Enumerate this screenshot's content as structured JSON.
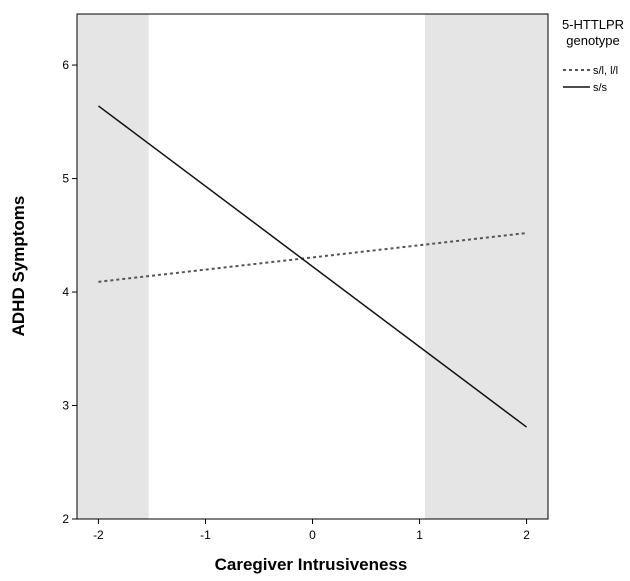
{
  "chart_data": {
    "type": "line",
    "xlabel": "Caregiver Intrusiveness",
    "ylabel": "ADHD Symptoms",
    "xlim": [
      -2.2,
      2.2
    ],
    "ylim": [
      2,
      6.45
    ],
    "x_ticks": [
      -2,
      -1,
      0,
      1,
      2
    ],
    "y_ticks": [
      2,
      3,
      4,
      5,
      6
    ],
    "grid": false,
    "shaded_regions": [
      {
        "x_from": -2.2,
        "x_to": -1.53,
        "color": "#e5e5e5"
      },
      {
        "x_from": 1.05,
        "x_to": 2.2,
        "color": "#e5e5e5"
      }
    ],
    "series": [
      {
        "name": "s/l, l/l",
        "style": "dotted",
        "color": "#555555",
        "x": [
          -2,
          2
        ],
        "y": [
          4.09,
          4.52
        ]
      },
      {
        "name": "s/s",
        "style": "solid",
        "color": "#111111",
        "x": [
          -2,
          2
        ],
        "y": [
          5.64,
          2.81
        ]
      }
    ],
    "legend": {
      "title_lines": [
        "5-HTTLPR",
        "genotype"
      ],
      "placement": "right"
    }
  }
}
